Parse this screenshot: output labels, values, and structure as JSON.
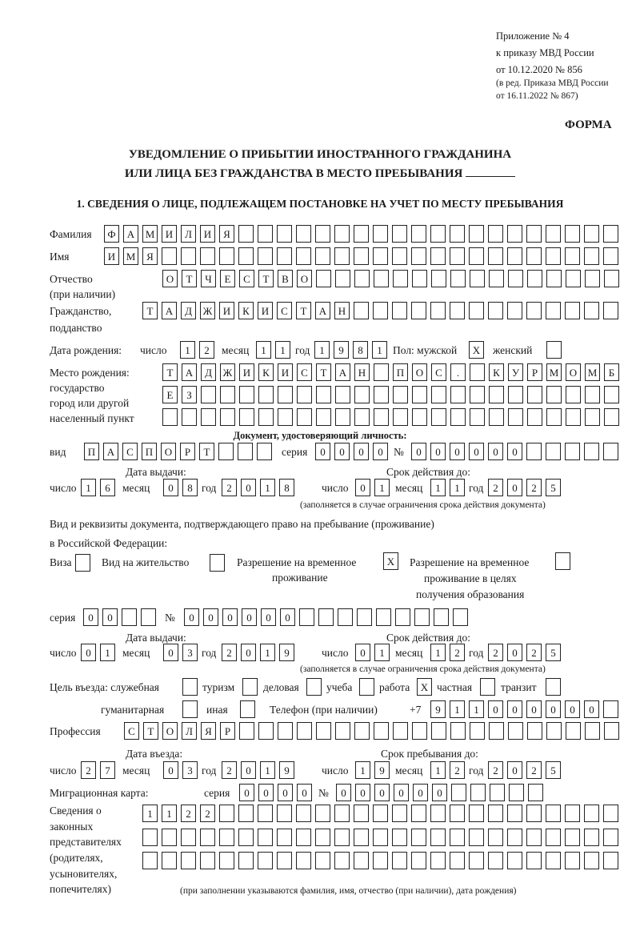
{
  "header": {
    "appendix": "Приложение № 4",
    "order": "к приказу МВД России",
    "order_date": "от 10.12.2020 № 856",
    "revision1": "(в ред. Приказа МВД России",
    "revision2": "от 16.11.2022 № 867)",
    "form_label": "ФОРМА",
    "title_line1": "УВЕДОМЛЕНИЕ О ПРИБЫТИИ ИНОСТРАННОГО ГРАЖДАНИНА",
    "title_line2": "ИЛИ ЛИЦА БЕЗ ГРАЖДАНСТВА В МЕСТО ПРЕБЫВАНИЯ",
    "section1": "1. СВЕДЕНИЯ О ЛИЦЕ, ПОДЛЕЖАЩЕМ ПОСТАНОВКЕ НА УЧЕТ ПО МЕСТУ ПРЕБЫВАНИЯ"
  },
  "person": {
    "surname": {
      "label": "Фамилия",
      "value": "ФАМИЛИЯ",
      "boxes": 27
    },
    "name": {
      "label": "Имя",
      "value": "ИМЯ",
      "boxes": 27
    },
    "patronymic": {
      "label": "Отчество",
      "label2": "(при наличии)",
      "value": "ОТЧЕСТВО",
      "boxes": 24
    },
    "citizenship": {
      "label": "Гражданство,",
      "label2": "подданство",
      "value": "ТАДЖИКИСТАН",
      "boxes": 25
    },
    "birth": {
      "label": "Дата рождения:",
      "day_label": "число",
      "month_label": "месяц",
      "year_label": "год",
      "day": {
        "value": "12",
        "boxes": 2
      },
      "month": {
        "value": "11",
        "boxes": 2
      },
      "year": {
        "value": "1981",
        "boxes": 4
      },
      "sex_label": "Пол: мужской",
      "male": {
        "value": "X",
        "boxes": 1
      },
      "female_label": "женский",
      "female": {
        "value": "",
        "boxes": 1
      }
    },
    "birthplace": {
      "label1": "Место рождения:",
      "label2": "государство",
      "label3": "город или другой",
      "label4": "населенный пункт",
      "row1": {
        "value": "ТАДЖИКИСТАН ПОС. КУРМОМБ",
        "boxes": 24
      },
      "row2": {
        "value": "ЕЗ",
        "boxes": 24
      },
      "row3": {
        "value": "",
        "boxes": 24
      }
    }
  },
  "id_doc": {
    "heading": "Документ, удостоверяющий личность:",
    "kind_label": "вид",
    "kind": {
      "value": "ПАСПОРТ",
      "boxes": 10
    },
    "series_label": "серия",
    "series": {
      "value": "0000",
      "boxes": 4
    },
    "number_label": "№",
    "number": {
      "value": "000000",
      "boxes": 11
    },
    "issue_label": "Дата выдачи:",
    "valid_label": "Срок действия до:",
    "day_label": "число",
    "month_label": "месяц",
    "year_label": "год",
    "issue_day": {
      "value": "16",
      "boxes": 2
    },
    "issue_month": {
      "value": "08",
      "boxes": 2
    },
    "issue_year": {
      "value": "2018",
      "boxes": 4
    },
    "valid_day": {
      "value": "01",
      "boxes": 2
    },
    "valid_month": {
      "value": "11",
      "boxes": 2
    },
    "valid_year": {
      "value": "2025",
      "boxes": 4
    },
    "note": "(заполняется в случае ограничения срока действия документа)"
  },
  "stay_doc": {
    "heading1": "Вид и реквизиты документа, подтверждающего право на пребывание (проживание)",
    "heading2": "в Российской Федерации:",
    "visa_label": "Виза",
    "visa": {
      "value": "",
      "boxes": 1
    },
    "residence_label": "Вид на жительство",
    "residence": {
      "value": "",
      "boxes": 1
    },
    "trp_label1": "Разрешение на временное",
    "trp_label2": "проживание",
    "trp": {
      "value": "X",
      "boxes": 1
    },
    "trp_edu_label1": "Разрешение на временное",
    "trp_edu_label2": "проживание в целях",
    "trp_edu_label3": "получения образования",
    "trp_edu": {
      "value": "",
      "boxes": 1
    },
    "series_label": "серия",
    "series": {
      "value": "00",
      "boxes": 4
    },
    "number_label": "№",
    "number": {
      "value": "000000",
      "boxes": 15
    },
    "issue_label": "Дата выдачи:",
    "valid_label": "Срок действия до:",
    "day_label": "число",
    "month_label": "месяц",
    "year_label": "год",
    "issue_day": {
      "value": "01",
      "boxes": 2
    },
    "issue_month": {
      "value": "03",
      "boxes": 2
    },
    "issue_year": {
      "value": "2019",
      "boxes": 4
    },
    "valid_day": {
      "value": "01",
      "boxes": 2
    },
    "valid_month": {
      "value": "12",
      "boxes": 2
    },
    "valid_year": {
      "value": "2025",
      "boxes": 4
    },
    "note": "(заполняется в случае ограничения срока действия документа)"
  },
  "purpose": {
    "label": "Цель въезда: служебная",
    "official": {
      "value": "",
      "boxes": 1
    },
    "tourism_label": "туризм",
    "tourism": {
      "value": "",
      "boxes": 1
    },
    "business_label": "деловая",
    "business": {
      "value": "",
      "boxes": 1
    },
    "study_label": "учеба",
    "study": {
      "value": "",
      "boxes": 1
    },
    "work_label": "работа",
    "work": {
      "value": "X",
      "boxes": 1
    },
    "private_label": "частная",
    "private": {
      "value": "",
      "boxes": 1
    },
    "transit_label": "транзит",
    "transit": {
      "value": "",
      "boxes": 1
    },
    "humanitarian_label": "гуманитарная",
    "humanitarian": {
      "value": "",
      "boxes": 1
    },
    "other_label": "иная",
    "other": {
      "value": "",
      "boxes": 1
    }
  },
  "phone": {
    "label": "Телефон (при наличии)",
    "prefix": "+7",
    "value": "911000000",
    "boxes": 10
  },
  "profession": {
    "label": "Профессия",
    "value": "СТОЛЯР",
    "boxes": 26
  },
  "entry": {
    "entry_label": "Дата въезда:",
    "stay_until_label": "Срок пребывания до:",
    "day_label": "число",
    "month_label": "месяц",
    "year_label": "год",
    "entry_day": {
      "value": "27",
      "boxes": 2
    },
    "entry_month": {
      "value": "03",
      "boxes": 2
    },
    "entry_year": {
      "value": "2019",
      "boxes": 4
    },
    "until_day": {
      "value": "19",
      "boxes": 2
    },
    "until_month": {
      "value": "12",
      "boxes": 2
    },
    "until_year": {
      "value": "2025",
      "boxes": 4
    }
  },
  "migration_card": {
    "label": "Миграционная карта:",
    "series_label": "серия",
    "series": {
      "value": "0000",
      "boxes": 4
    },
    "number_label": "№",
    "number": {
      "value": "000000",
      "boxes": 11
    }
  },
  "representatives": {
    "label1": "Сведения о",
    "label2": "законных",
    "label3": "представителях",
    "label4": "(родителях,",
    "label5": "усыновителях,",
    "label6": "попечителях)",
    "row1": {
      "value": "1122",
      "boxes": 25
    },
    "row2": {
      "value": "",
      "boxes": 25
    },
    "row3": {
      "value": "",
      "boxes": 25
    },
    "note": "(при заполнении указываются фамилия, имя, отчество (при наличии), дата рождения)"
  }
}
